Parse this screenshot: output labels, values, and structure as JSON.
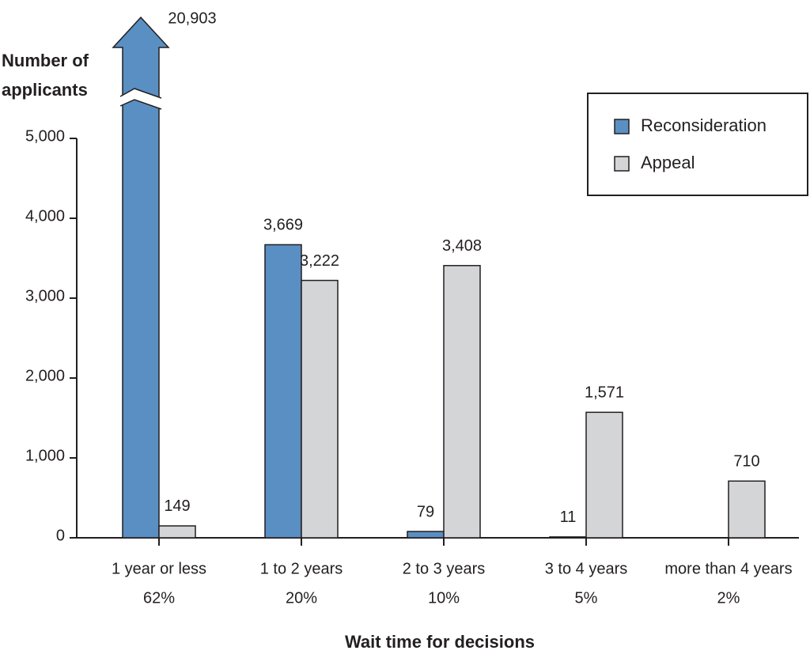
{
  "chart_data": {
    "type": "bar",
    "y_label": "Number of applicants",
    "x_label": "Wait time for decisions",
    "categories": [
      "1 year or less",
      "1 to 2 years",
      "2 to 3 years",
      "3 to 4 years",
      "more than 4 years"
    ],
    "category_shares": [
      {
        "value": 62,
        "label": "62%"
      },
      {
        "value": 20,
        "label": "20%"
      },
      {
        "value": 10,
        "label": "10%"
      },
      {
        "value": 5,
        "label": "5%"
      },
      {
        "value": 2,
        "label": "2%"
      }
    ],
    "series": [
      {
        "name": "Reconsideration",
        "color": "#5a8fc3",
        "values": [
          20903,
          3669,
          79,
          11,
          null
        ],
        "value_labels": [
          "20,903",
          "3,669",
          "79",
          "11",
          null
        ]
      },
      {
        "name": "Appeal",
        "color": "#d4d5d7",
        "values": [
          149,
          3222,
          3408,
          1571,
          710
        ],
        "value_labels": [
          "149",
          "3,222",
          "3,408",
          "1,571",
          "710"
        ]
      }
    ],
    "ylim": [
      0,
      5000
    ],
    "yticks": [
      0,
      {
        "value": 1000,
        "label": "1,000"
      },
      {
        "value": 2000,
        "label": "2,000"
      },
      {
        "value": 3000,
        "label": "3,000"
      },
      {
        "value": 4000,
        "label": "4,000"
      },
      {
        "value": 5000,
        "label": "5,000"
      }
    ],
    "grid": false,
    "legend": "top-right"
  }
}
